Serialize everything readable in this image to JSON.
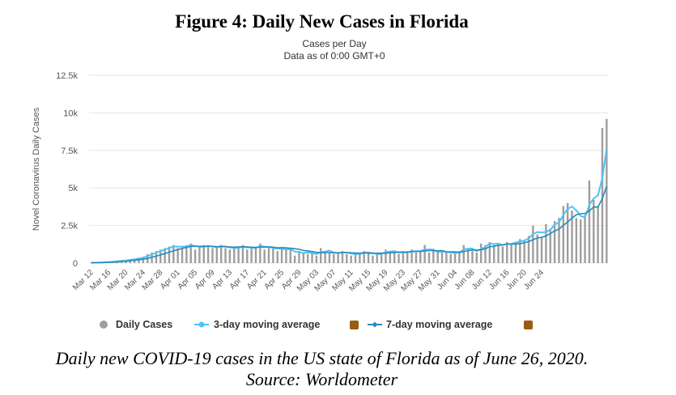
{
  "figure": {
    "title": "Figure 4: Daily New Cases in Florida"
  },
  "caption": {
    "line1": "Daily new COVID-19 cases in the US state of Florida as of June 26, 2020.",
    "line2": "Source: Worldometer"
  },
  "chart_data": {
    "type": "bar",
    "title": "Cases per Day",
    "subtitle": "Data as of 0:00 GMT+0",
    "xlabel": "",
    "ylabel": "Novel Coronavirus Daily Cases",
    "ylim": [
      0,
      12500
    ],
    "yticks": [
      "0",
      "2.5k",
      "5k",
      "7.5k",
      "10k",
      "12.5k"
    ],
    "ytick_values": [
      0,
      2500,
      5000,
      7500,
      10000,
      12500
    ],
    "start_date": "Mar 12",
    "xtick_labels": [
      "Mar 12",
      "Mar 16",
      "Mar 20",
      "Mar 24",
      "Mar 28",
      "Apr 01",
      "Apr 05",
      "Apr 09",
      "Apr 13",
      "Apr 17",
      "Apr 21",
      "Apr 25",
      "Apr 29",
      "May 03",
      "May 07",
      "May 11",
      "May 15",
      "May 19",
      "May 23",
      "May 27",
      "May 31",
      "Jun 04",
      "Jun 08",
      "Jun 12",
      "Jun 16",
      "Jun 20",
      "Jun 24"
    ],
    "grid": true,
    "legend_position": "bottom",
    "colors": {
      "bars": "#9e9e9e",
      "ma3": "#4fc3f7",
      "ma7": "#2a8ab8",
      "legend_box": "#9a5b14"
    },
    "series": [
      {
        "name": "Daily Cases",
        "kind": "bar",
        "values": [
          20,
          30,
          50,
          60,
          90,
          120,
          150,
          180,
          200,
          260,
          300,
          360,
          420,
          600,
          700,
          800,
          900,
          1000,
          1100,
          1200,
          1000,
          1100,
          1200,
          1300,
          900,
          1100,
          1200,
          1100,
          1000,
          1100,
          1200,
          1000,
          900,
          1100,
          1000,
          1200,
          900,
          1000,
          1100,
          1300,
          900,
          1000,
          1100,
          800,
          1000,
          900,
          900,
          500,
          800,
          700,
          600,
          700,
          500,
          1000,
          800,
          700,
          600,
          700,
          800,
          600,
          500,
          700,
          600,
          800,
          700,
          500,
          600,
          700,
          900,
          700,
          800,
          600,
          700,
          800,
          900,
          700,
          800,
          1200,
          700,
          800,
          700,
          800,
          700,
          600,
          700,
          800,
          1200,
          900,
          800,
          700,
          1300,
          1200,
          1400,
          1200,
          1300,
          1100,
          1400,
          1300,
          1400,
          1600,
          1500,
          1800,
          2500,
          1900,
          1700,
          2600,
          2300,
          2800,
          3000,
          3800,
          4000,
          3500,
          3000,
          2900,
          3200,
          5500,
          4200,
          3800,
          9000,
          9600
        ]
      },
      {
        "name": "3-day moving average",
        "kind": "line",
        "values": [
          20,
          25,
          33,
          47,
          67,
          90,
          120,
          150,
          177,
          213,
          253,
          307,
          360,
          460,
          573,
          700,
          800,
          900,
          1000,
          1100,
          1100,
          1100,
          1100,
          1200,
          1133,
          1100,
          1067,
          1133,
          1100,
          1067,
          1100,
          1100,
          1033,
          1000,
          1000,
          1100,
          1033,
          1033,
          1000,
          1133,
          1100,
          1067,
          1000,
          967,
          967,
          900,
          933,
          767,
          733,
          667,
          700,
          667,
          600,
          733,
          767,
          833,
          700,
          667,
          700,
          700,
          633,
          600,
          600,
          700,
          700,
          667,
          600,
          600,
          733,
          767,
          800,
          700,
          700,
          700,
          800,
          800,
          800,
          900,
          900,
          900,
          733,
          767,
          733,
          700,
          667,
          700,
          900,
          967,
          967,
          800,
          933,
          1067,
          1300,
          1267,
          1300,
          1200,
          1267,
          1267,
          1367,
          1433,
          1500,
          1633,
          1933,
          2067,
          2033,
          2067,
          2200,
          2567,
          2700,
          3200,
          3600,
          3767,
          3500,
          3133,
          3033,
          3867,
          4300,
          4500,
          5667,
          7600
        ]
      },
      {
        "name": "7-day moving average",
        "kind": "line",
        "values": [
          20,
          25,
          33,
          40,
          50,
          62,
          74,
          100,
          121,
          151,
          183,
          219,
          260,
          310,
          384,
          459,
          543,
          631,
          720,
          814,
          900,
          971,
          1043,
          1114,
          1114,
          1114,
          1114,
          1129,
          1114,
          1086,
          1114,
          1100,
          1071,
          1057,
          1071,
          1086,
          1071,
          1057,
          1029,
          1071,
          1057,
          1071,
          1057,
          1014,
          1029,
          1014,
          986,
          957,
          914,
          843,
          814,
          767,
          714,
          686,
          700,
          700,
          686,
          686,
          700,
          700,
          686,
          667,
          657,
          686,
          664,
          643,
          657,
          657,
          657,
          686,
          700,
          729,
          743,
          729,
          757,
          771,
          771,
          814,
          829,
          829,
          814,
          829,
          757,
          743,
          743,
          714,
          757,
          829,
          871,
          857,
          886,
          950,
          1086,
          1114,
          1186,
          1200,
          1271,
          1271,
          1271,
          1286,
          1357,
          1429,
          1557,
          1671,
          1714,
          1800,
          1971,
          2143,
          2257,
          2514,
          2729,
          3000,
          3214,
          3286,
          3300,
          3471,
          3729,
          3729,
          4300,
          5100
        ]
      }
    ]
  }
}
